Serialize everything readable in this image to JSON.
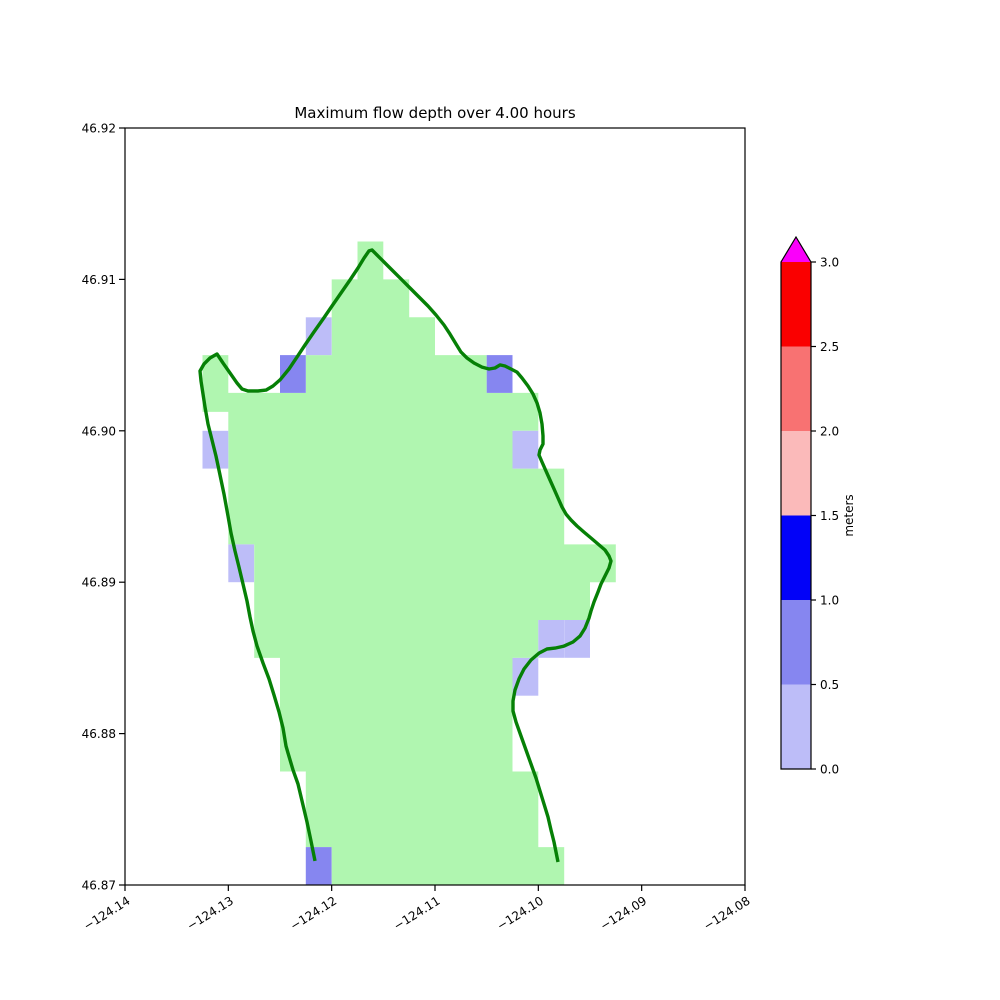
{
  "figure": {
    "title": "Maximum flow depth over 4.00 hours"
  },
  "chart_data": {
    "type": "heatmap",
    "title": "Maximum flow depth over 4.00 hours",
    "xlabel": "",
    "ylabel": "",
    "xlim": [
      -124.14,
      -124.08
    ],
    "ylim": [
      46.87,
      46.92
    ],
    "grid": false,
    "legend_position": "right-colorbar",
    "x_tick_values": [
      -124.14,
      -124.13,
      -124.12,
      -124.11,
      -124.1,
      -124.09,
      -124.08
    ],
    "x_tick_labels": [
      "−124.14",
      "−124.13",
      "−124.12",
      "−124.11",
      "−124.10",
      "−124.09",
      "−124.08"
    ],
    "y_tick_values": [
      46.87,
      46.88,
      46.89,
      46.9,
      46.91,
      46.92
    ],
    "y_tick_labels": [
      "46.87",
      "46.88",
      "46.89",
      "46.90",
      "46.91",
      "46.92"
    ],
    "cell_size_deg": 0.0025,
    "colors": {
      "land": "#b0f6b0",
      "coastline": "#068006",
      "frame": "#000000",
      "background": "#ffffff"
    },
    "land_polygon": [
      [
        -124.1175,
        46.9125
      ],
      [
        -124.115,
        46.9125
      ],
      [
        -124.115,
        46.91
      ],
      [
        -124.1125,
        46.91
      ],
      [
        -124.1125,
        46.9075
      ],
      [
        -124.11,
        46.9075
      ],
      [
        -124.11,
        46.905
      ],
      [
        -124.105,
        46.905
      ],
      [
        -124.105,
        46.9025
      ],
      [
        -124.1,
        46.9025
      ],
      [
        -124.1,
        46.9
      ],
      [
        -124.1025,
        46.9
      ],
      [
        -124.1025,
        46.8975
      ],
      [
        -124.0975,
        46.8975
      ],
      [
        -124.0975,
        46.8925
      ],
      [
        -124.0925,
        46.8925
      ],
      [
        -124.0925,
        46.89
      ],
      [
        -124.095,
        46.89
      ],
      [
        -124.095,
        46.8875
      ],
      [
        -124.1,
        46.8875
      ],
      [
        -124.1,
        46.885
      ],
      [
        -124.1025,
        46.885
      ],
      [
        -124.1025,
        46.8775
      ],
      [
        -124.1,
        46.8775
      ],
      [
        -124.1,
        46.8725
      ],
      [
        -124.0975,
        46.8725
      ],
      [
        -124.0975,
        46.87
      ],
      [
        -124.12,
        46.87
      ],
      [
        -124.12,
        46.8725
      ],
      [
        -124.1225,
        46.8725
      ],
      [
        -124.1225,
        46.8775
      ],
      [
        -124.125,
        46.8775
      ],
      [
        -124.125,
        46.885
      ],
      [
        -124.1275,
        46.885
      ],
      [
        -124.1275,
        46.8925
      ],
      [
        -124.13,
        46.8925
      ],
      [
        -124.13,
        46.90125
      ],
      [
        -124.1325,
        46.90125
      ],
      [
        -124.1325,
        46.905
      ],
      [
        -124.13,
        46.905
      ],
      [
        -124.13,
        46.9025
      ],
      [
        -124.1225,
        46.9025
      ],
      [
        -124.1225,
        46.905
      ],
      [
        -124.12,
        46.905
      ],
      [
        -124.12,
        46.91
      ],
      [
        -124.1175,
        46.91
      ]
    ],
    "depth_cells": [
      {
        "lon": -124.1225,
        "lat": 46.9075,
        "depth_range_m": "0.0-0.5",
        "color": "#bdbdf8"
      },
      {
        "lon": -124.1325,
        "lat": 46.9,
        "depth_range_m": "0.0-0.5",
        "color": "#bdbdf8"
      },
      {
        "lon": -124.1025,
        "lat": 46.9,
        "depth_range_m": "0.0-0.5",
        "color": "#bdbdf8"
      },
      {
        "lon": -124.13,
        "lat": 46.8925,
        "depth_range_m": "0.0-0.5",
        "color": "#bdbdf8"
      },
      {
        "lon": -124.1,
        "lat": 46.8875,
        "depth_range_m": "0.0-0.5",
        "color": "#bdbdf8"
      },
      {
        "lon": -124.0975,
        "lat": 46.8875,
        "depth_range_m": "0.0-0.5",
        "color": "#bdbdf8"
      },
      {
        "lon": -124.1025,
        "lat": 46.885,
        "depth_range_m": "0.0-0.5",
        "color": "#bdbdf8"
      },
      {
        "lon": -124.125,
        "lat": 46.905,
        "depth_range_m": "0.5-1.0",
        "color": "#8686f0"
      },
      {
        "lon": -124.105,
        "lat": 46.905,
        "depth_range_m": "0.5-1.0",
        "color": "#8686f0"
      },
      {
        "lon": -124.1225,
        "lat": 46.8725,
        "depth_range_m": "0.5-1.0",
        "color": "#8686f0"
      }
    ],
    "coastline": [
      [
        -124.12161,
        46.87159
      ],
      [
        -124.122,
        46.8729
      ],
      [
        -124.12239,
        46.87416
      ],
      [
        -124.12277,
        46.87528
      ],
      [
        -124.12326,
        46.87667
      ],
      [
        -124.12374,
        46.8776
      ],
      [
        -124.12423,
        46.87872
      ],
      [
        -124.12442,
        46.87918
      ],
      [
        -124.12471,
        46.88037
      ],
      [
        -124.1251,
        46.88143
      ],
      [
        -124.12558,
        46.88255
      ],
      [
        -124.12606,
        46.88361
      ],
      [
        -124.12665,
        46.88466
      ],
      [
        -124.12723,
        46.88579
      ],
      [
        -124.12761,
        46.88678
      ],
      [
        -124.1279,
        46.8877
      ],
      [
        -124.12819,
        46.88876
      ],
      [
        -124.12858,
        46.88988
      ],
      [
        -124.12897,
        46.891
      ],
      [
        -124.12935,
        46.89206
      ],
      [
        -124.12974,
        46.89325
      ],
      [
        -124.13003,
        46.89437
      ],
      [
        -124.13042,
        46.89582
      ],
      [
        -124.13081,
        46.89708
      ],
      [
        -124.13119,
        46.89833
      ],
      [
        -124.13158,
        46.89939
      ],
      [
        -124.13197,
        46.90045
      ],
      [
        -124.13226,
        46.90157
      ],
      [
        -124.13245,
        46.90243
      ],
      [
        -124.13265,
        46.90329
      ],
      [
        -124.13274,
        46.90395
      ],
      [
        -124.13235,
        46.90441
      ],
      [
        -124.13177,
        46.90481
      ],
      [
        -124.1311,
        46.90507
      ],
      [
        -124.13052,
        46.90448
      ],
      [
        -124.12984,
        46.90382
      ],
      [
        -124.12916,
        46.90316
      ],
      [
        -124.12868,
        46.90276
      ],
      [
        -124.1281,
        46.90263
      ],
      [
        -124.12713,
        46.90263
      ],
      [
        -124.12635,
        46.90269
      ],
      [
        -124.12568,
        46.90296
      ],
      [
        -124.125,
        46.90336
      ],
      [
        -124.12413,
        46.90408
      ],
      [
        -124.12335,
        46.90487
      ],
      [
        -124.12258,
        46.90567
      ],
      [
        -124.12171,
        46.90653
      ],
      [
        -124.12084,
        46.90738
      ],
      [
        -124.11997,
        46.90824
      ],
      [
        -124.1191,
        46.9091
      ],
      [
        -124.11823,
        46.90996
      ],
      [
        -124.11745,
        46.91075
      ],
      [
        -124.11687,
        46.91141
      ],
      [
        -124.11639,
        46.91188
      ],
      [
        -124.1161,
        46.91194
      ],
      [
        -124.11561,
        46.91161
      ],
      [
        -124.11494,
        46.91115
      ],
      [
        -124.11416,
        46.91062
      ],
      [
        -124.11329,
        46.91003
      ],
      [
        -124.11242,
        46.90943
      ],
      [
        -124.11155,
        46.90884
      ],
      [
        -124.11068,
        46.90824
      ],
      [
        -124.1099,
        46.90765
      ],
      [
        -124.10913,
        46.90699
      ],
      [
        -124.10855,
        46.90639
      ],
      [
        -124.10797,
        46.90573
      ],
      [
        -124.10748,
        46.9052
      ],
      [
        -124.1069,
        46.90481
      ],
      [
        -124.10623,
        46.90448
      ],
      [
        -124.10545,
        46.90421
      ],
      [
        -124.10477,
        46.90408
      ],
      [
        -124.10419,
        46.90415
      ],
      [
        -124.10371,
        46.90435
      ],
      [
        -124.10323,
        46.90428
      ],
      [
        -124.10265,
        46.90408
      ],
      [
        -124.10206,
        46.90388
      ],
      [
        -124.10158,
        46.90349
      ],
      [
        -124.101,
        46.90296
      ],
      [
        -124.10052,
        46.90243
      ],
      [
        -124.10013,
        46.90184
      ],
      [
        -124.09984,
        46.90118
      ],
      [
        -124.09965,
        46.90045
      ],
      [
        -124.09955,
        46.89966
      ],
      [
        -124.09955,
        46.89913
      ],
      [
        -124.09984,
        46.89873
      ],
      [
        -124.09994,
        46.8984
      ],
      [
        -124.09965,
        46.89794
      ],
      [
        -124.09926,
        46.89734
      ],
      [
        -124.09887,
        46.89675
      ],
      [
        -124.09848,
        46.89616
      ],
      [
        -124.0981,
        46.89556
      ],
      [
        -124.09771,
        46.89497
      ],
      [
        -124.09732,
        46.8945
      ],
      [
        -124.09684,
        46.89411
      ],
      [
        -124.09626,
        46.89371
      ],
      [
        -124.09558,
        46.89331
      ],
      [
        -124.0949,
        46.89292
      ],
      [
        -124.09423,
        46.89252
      ],
      [
        -124.09355,
        46.89213
      ],
      [
        -124.09316,
        46.89173
      ],
      [
        -124.09297,
        46.8914
      ],
      [
        -124.09316,
        46.89094
      ],
      [
        -124.09355,
        46.89041
      ],
      [
        -124.09394,
        46.88988
      ],
      [
        -124.09423,
        46.88935
      ],
      [
        -124.09461,
        46.88869
      ],
      [
        -124.0949,
        46.8881
      ],
      [
        -124.0951,
        46.88763
      ],
      [
        -124.09548,
        46.88697
      ],
      [
        -124.09597,
        46.88644
      ],
      [
        -124.09665,
        46.88605
      ],
      [
        -124.09752,
        46.88578
      ],
      [
        -124.09839,
        46.88565
      ],
      [
        -124.09916,
        46.88559
      ],
      [
        -124.09994,
        46.88532
      ],
      [
        -124.10071,
        46.88486
      ],
      [
        -124.10139,
        46.88427
      ],
      [
        -124.10187,
        46.88361
      ],
      [
        -124.10226,
        46.88288
      ],
      [
        -124.10245,
        46.88215
      ],
      [
        -124.10245,
        46.88149
      ],
      [
        -124.10216,
        46.88077
      ],
      [
        -124.10168,
        46.87984
      ],
      [
        -124.10119,
        46.87892
      ],
      [
        -124.10071,
        46.87799
      ],
      [
        -124.10023,
        46.87707
      ],
      [
        -124.09984,
        46.87621
      ],
      [
        -124.09945,
        46.87535
      ],
      [
        -124.09906,
        46.87449
      ],
      [
        -124.09877,
        46.87363
      ],
      [
        -124.09848,
        46.87284
      ],
      [
        -124.09829,
        46.87218
      ],
      [
        -124.0981,
        46.87152
      ]
    ],
    "colorbar": {
      "label": "meters",
      "vmin": 0.0,
      "vmax": 3.0,
      "extend": "max",
      "over_color": "#fa00fa",
      "tick_values": [
        0.0,
        0.5,
        1.0,
        1.5,
        2.0,
        2.5,
        3.0
      ],
      "tick_labels": [
        "0.0",
        "0.5",
        "1.0",
        "1.5",
        "2.0",
        "2.5",
        "3.0"
      ],
      "segments": [
        {
          "range": [
            0.0,
            0.5
          ],
          "color": "#bdbdf8"
        },
        {
          "range": [
            0.5,
            1.0
          ],
          "color": "#8686f0"
        },
        {
          "range": [
            1.0,
            1.5
          ],
          "color": "#0202f8"
        },
        {
          "range": [
            1.5,
            2.0
          ],
          "color": "#fbbaba"
        },
        {
          "range": [
            2.0,
            2.5
          ],
          "color": "#f87272"
        },
        {
          "range": [
            2.5,
            3.0
          ],
          "color": "#fa0000"
        }
      ]
    }
  }
}
